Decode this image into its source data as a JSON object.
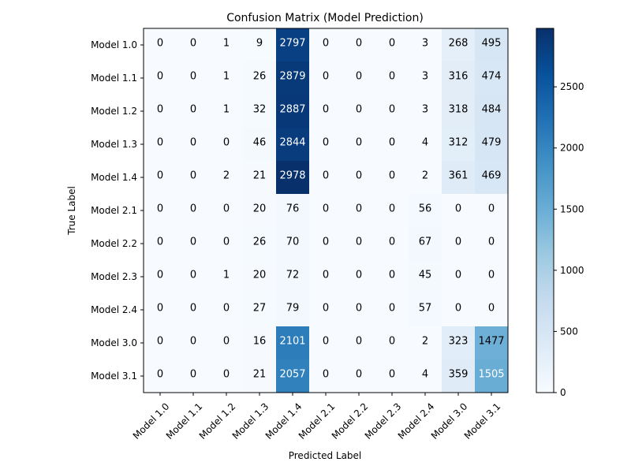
{
  "chart_data": {
    "type": "heatmap",
    "title": "Confusion Matrix (Model Prediction)",
    "xlabel": "Predicted Label",
    "ylabel": "True Label",
    "x_categories": [
      "Model 1.0",
      "Model 1.1",
      "Model 1.2",
      "Model 1.3",
      "Model 1.4",
      "Model 2.1",
      "Model 2.2",
      "Model 2.3",
      "Model 2.4",
      "Model 3.0",
      "Model 3.1"
    ],
    "y_categories": [
      "Model 1.0",
      "Model 1.1",
      "Model 1.2",
      "Model 1.3",
      "Model 1.4",
      "Model 2.1",
      "Model 2.2",
      "Model 2.3",
      "Model 2.4",
      "Model 3.0",
      "Model 3.1"
    ],
    "values": [
      [
        0,
        0,
        1,
        9,
        2797,
        0,
        0,
        0,
        3,
        268,
        495
      ],
      [
        0,
        0,
        1,
        26,
        2879,
        0,
        0,
        0,
        3,
        316,
        474
      ],
      [
        0,
        0,
        1,
        32,
        2887,
        0,
        0,
        0,
        3,
        318,
        484
      ],
      [
        0,
        0,
        0,
        46,
        2844,
        0,
        0,
        0,
        4,
        312,
        479
      ],
      [
        0,
        0,
        2,
        21,
        2978,
        0,
        0,
        0,
        2,
        361,
        469
      ],
      [
        0,
        0,
        0,
        20,
        76,
        0,
        0,
        0,
        56,
        0,
        0
      ],
      [
        0,
        0,
        0,
        26,
        70,
        0,
        0,
        0,
        67,
        0,
        0
      ],
      [
        0,
        0,
        1,
        20,
        72,
        0,
        0,
        0,
        45,
        0,
        0
      ],
      [
        0,
        0,
        0,
        27,
        79,
        0,
        0,
        0,
        57,
        0,
        0
      ],
      [
        0,
        0,
        0,
        16,
        2101,
        0,
        0,
        0,
        2,
        323,
        1477
      ],
      [
        0,
        0,
        0,
        21,
        2057,
        0,
        0,
        0,
        4,
        359,
        1505
      ]
    ],
    "colormap": "Blues",
    "vmin": 0,
    "vmax": 2978,
    "colorbar_ticks": [
      0,
      500,
      1000,
      1500,
      2000,
      2500
    ],
    "grid": false,
    "legend": "colorbar-right"
  }
}
